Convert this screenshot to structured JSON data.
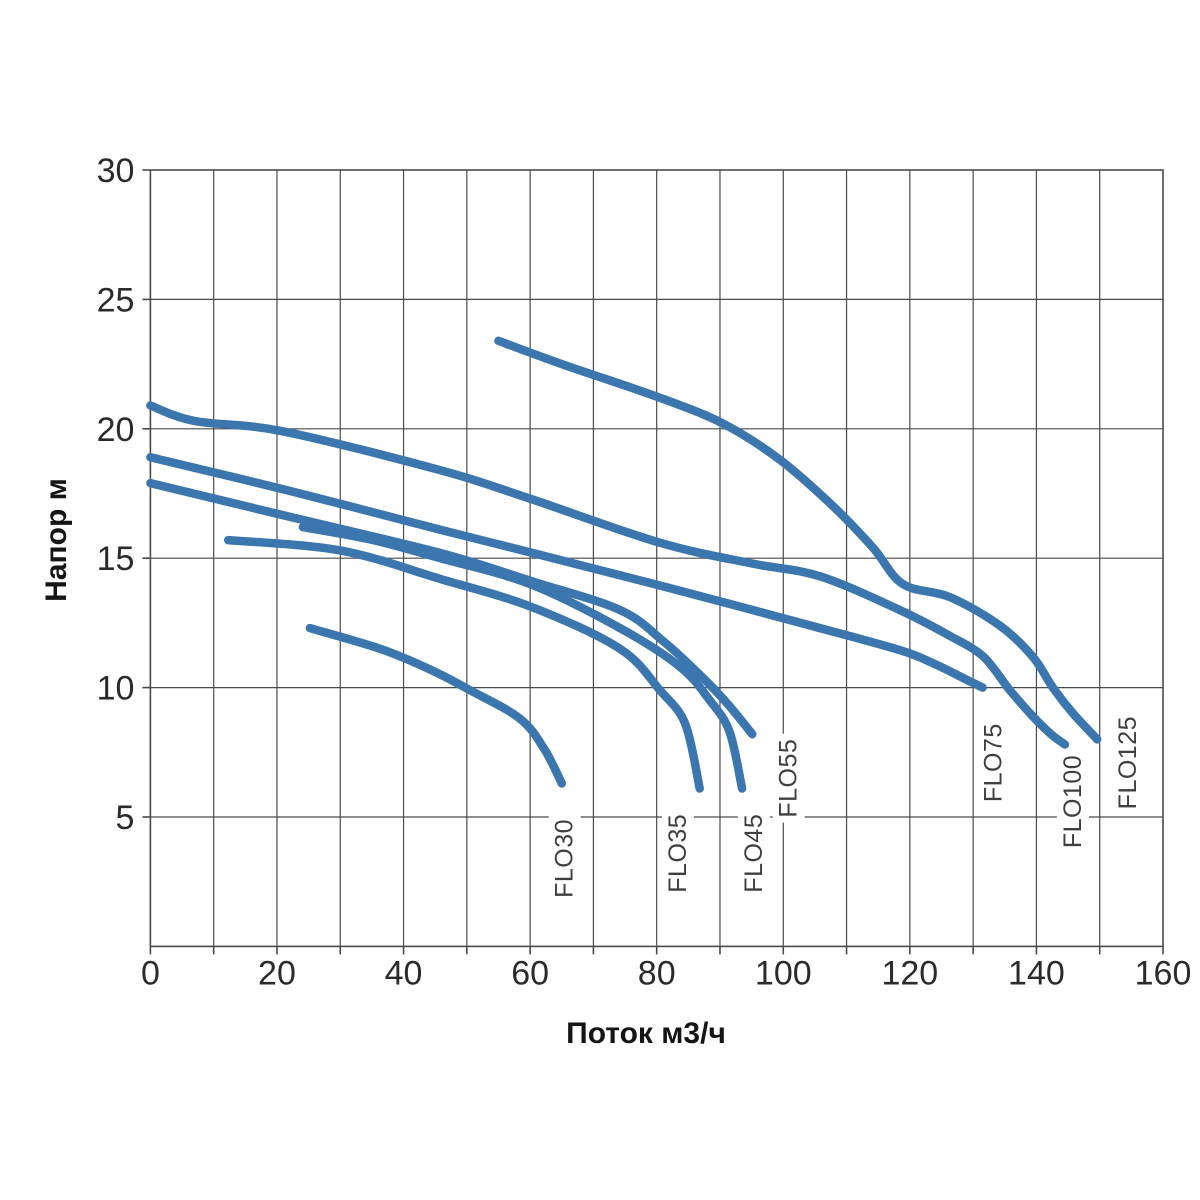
{
  "chart_data": {
    "type": "line",
    "title": "",
    "xlabel": "Поток м3/ч",
    "ylabel": "Напор м",
    "xlim": [
      0,
      160
    ],
    "ylim": [
      0,
      30
    ],
    "grid": true,
    "x_grid_step": 10,
    "y_grid_step": 5,
    "x_ticks_labeled": [
      0,
      20,
      40,
      60,
      80,
      100,
      120,
      140,
      160
    ],
    "y_ticks_labeled": [
      5,
      10,
      15,
      20,
      25,
      30
    ],
    "line_color": "#3b76ae",
    "grid_color": "#4a4a4a",
    "tick_text_color": "#2b2b2b",
    "legend_position": "rotated labels at curve ends",
    "series": [
      {
        "name": "FLO30",
        "label_pos": {
          "x": 65.3,
          "y": 3.4
        },
        "points": [
          [
            25.2,
            12.3
          ],
          [
            36.3,
            11.5
          ],
          [
            44.2,
            10.7
          ],
          [
            50.5,
            9.9
          ],
          [
            58.4,
            8.8
          ],
          [
            62.3,
            7.6
          ],
          [
            65,
            6.3
          ]
        ]
      },
      {
        "name": "FLO35",
        "label_pos": {
          "x": 83.2,
          "y": 3.6
        },
        "points": [
          [
            12.3,
            15.7
          ],
          [
            30,
            15.3
          ],
          [
            45.8,
            14.2
          ],
          [
            60.4,
            13.1
          ],
          [
            74.2,
            11.5
          ],
          [
            80.5,
            9.9
          ],
          [
            84.5,
            8.6
          ],
          [
            86.8,
            6.1
          ]
        ]
      },
      {
        "name": "FLO45",
        "label_pos": {
          "x": 95.2,
          "y": 3.6
        },
        "points": [
          [
            24.1,
            16.2
          ],
          [
            35.2,
            15.7
          ],
          [
            45.8,
            15.0
          ],
          [
            60,
            14.0
          ],
          [
            74.2,
            12.3
          ],
          [
            83.7,
            10.8
          ],
          [
            88.4,
            9.5
          ],
          [
            91.5,
            8.3
          ],
          [
            93.5,
            6.1
          ]
        ]
      },
      {
        "name": "FLO55",
        "label_pos": {
          "x": 100.7,
          "y": 6.5
        },
        "points": [
          [
            0,
            17.9
          ],
          [
            22,
            16.6
          ],
          [
            45.8,
            15.2
          ],
          [
            60.4,
            14.1
          ],
          [
            74.2,
            13.0
          ],
          [
            81,
            11.8
          ],
          [
            86.8,
            10.5
          ],
          [
            91.1,
            9.4
          ],
          [
            95.1,
            8.2
          ]
        ]
      },
      {
        "name": "FLO75",
        "label_pos": {
          "x": 133.1,
          "y": 7.1
        },
        "points": [
          [
            0,
            18.9
          ],
          [
            22,
            17.6
          ],
          [
            45.8,
            16.1
          ],
          [
            60.4,
            15.2
          ],
          [
            82,
            13.85
          ],
          [
            105.8,
            12.3
          ],
          [
            118.4,
            11.45
          ],
          [
            123.6,
            10.95
          ],
          [
            129,
            10.3
          ],
          [
            131.5,
            10.0
          ]
        ]
      },
      {
        "name": "FLO100",
        "label_pos": {
          "x": 145.6,
          "y": 5.6
        },
        "points": [
          [
            0,
            20.9
          ],
          [
            7,
            20.3
          ],
          [
            21,
            19.9
          ],
          [
            45.8,
            18.4
          ],
          [
            60,
            17.3
          ],
          [
            80.5,
            15.6
          ],
          [
            95,
            14.8
          ],
          [
            105.8,
            14.3
          ],
          [
            118.4,
            13.0
          ],
          [
            126.3,
            12.0
          ],
          [
            131.6,
            11.2
          ],
          [
            135.8,
            9.9
          ],
          [
            139.4,
            8.9
          ],
          [
            142.3,
            8.2
          ],
          [
            144.5,
            7.8
          ]
        ]
      },
      {
        "name": "FLO125",
        "label_pos": {
          "x": 154.3,
          "y": 7.1
        },
        "points": [
          [
            55,
            23.4
          ],
          [
            65,
            22.5
          ],
          [
            80.5,
            21.2
          ],
          [
            90.5,
            20.2
          ],
          [
            99.5,
            18.8
          ],
          [
            107.9,
            17.0
          ],
          [
            114.2,
            15.4
          ],
          [
            118.9,
            14.0
          ],
          [
            126.3,
            13.5
          ],
          [
            134.2,
            12.4
          ],
          [
            139.4,
            11.2
          ],
          [
            142.6,
            10.0
          ],
          [
            145.8,
            9.0
          ],
          [
            149.6,
            8.0
          ]
        ]
      }
    ]
  }
}
